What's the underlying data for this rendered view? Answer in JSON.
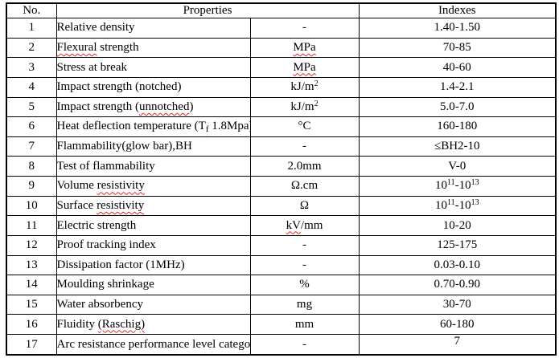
{
  "table": {
    "headers": {
      "no": "No.",
      "properties": "Properties",
      "indexes": "Indexes"
    },
    "squiggle_color": "#e02b20",
    "border_color": "#000000",
    "rows": [
      {
        "no": "1",
        "property": [
          {
            "t": "Relative density"
          }
        ],
        "unit": [
          {
            "t": "-"
          }
        ],
        "index": [
          {
            "t": "1.40-1.50"
          }
        ]
      },
      {
        "no": "2",
        "property": [
          {
            "t": "Flexural",
            "sq": true
          },
          {
            "t": " strength"
          }
        ],
        "unit": [
          {
            "t": "MPa",
            "sq": true
          }
        ],
        "index": [
          {
            "t": "70-85"
          }
        ]
      },
      {
        "no": "3",
        "property": [
          {
            "t": "Stress at break"
          }
        ],
        "unit": [
          {
            "t": "MPa",
            "sq": true
          }
        ],
        "index": [
          {
            "t": "40-60"
          }
        ]
      },
      {
        "no": "4",
        "property": [
          {
            "t": "Impact strength (notched)"
          }
        ],
        "unit": [
          {
            "t": "kJ/m"
          },
          {
            "t": "2",
            "v": "sup"
          }
        ],
        "index": [
          {
            "t": "1.4-2.1"
          }
        ]
      },
      {
        "no": "5",
        "property": [
          {
            "t": "Impact strength ("
          },
          {
            "t": "unnotched",
            "sq": true
          },
          {
            "t": ")"
          }
        ],
        "unit": [
          {
            "t": "kJ/m"
          },
          {
            "t": "2",
            "v": "sup"
          }
        ],
        "index": [
          {
            "t": "5.0-7.0"
          }
        ]
      },
      {
        "no": "6",
        "property": [
          {
            "t": "Heat deflection temperature (T"
          },
          {
            "t": "f",
            "v": "sub",
            "sq": true
          },
          {
            "t": " 1.8Mpa)"
          }
        ],
        "unit": [
          {
            "t": "°C"
          }
        ],
        "index": [
          {
            "t": "160-180"
          }
        ]
      },
      {
        "no": "7",
        "property": [
          {
            "t": "Flammability(glow bar),BH"
          }
        ],
        "unit": [
          {
            "t": "-"
          }
        ],
        "index": [
          {
            "t": "≤BH2-10"
          }
        ]
      },
      {
        "no": "8",
        "property": [
          {
            "t": "Test of flammability"
          }
        ],
        "unit": [
          {
            "t": "2.0mm"
          }
        ],
        "index": [
          {
            "t": "V-0"
          }
        ]
      },
      {
        "no": "9",
        "property": [
          {
            "t": "Volume "
          },
          {
            "t": "resistivity",
            "sq": true
          }
        ],
        "unit": [
          {
            "t": "Ω.cm"
          }
        ],
        "index": [
          {
            "t": "10"
          },
          {
            "t": "11",
            "v": "sup"
          },
          {
            "t": "-10"
          },
          {
            "t": "13",
            "v": "sup"
          }
        ]
      },
      {
        "no": "10",
        "property": [
          {
            "t": "Surface "
          },
          {
            "t": "resistivity",
            "sq": true
          }
        ],
        "unit": [
          {
            "t": "Ω"
          }
        ],
        "index": [
          {
            "t": "10"
          },
          {
            "t": "11",
            "v": "sup"
          },
          {
            "t": "-10"
          },
          {
            "t": "13",
            "v": "sup"
          }
        ]
      },
      {
        "no": "11",
        "property": [
          {
            "t": "Electric strength"
          }
        ],
        "unit": [
          {
            "t": "kV",
            "sq": true
          },
          {
            "t": "/mm"
          }
        ],
        "index": [
          {
            "t": "10-20"
          }
        ]
      },
      {
        "no": "12",
        "property": [
          {
            "t": "Proof tracking index"
          }
        ],
        "unit": [
          {
            "t": "-"
          }
        ],
        "index": [
          {
            "t": "125-175"
          }
        ]
      },
      {
        "no": "13",
        "property": [
          {
            "t": "Dissipation factor (1MHz)"
          }
        ],
        "unit": [
          {
            "t": "-"
          }
        ],
        "index": [
          {
            "t": "0.03-0.10"
          }
        ]
      },
      {
        "no": "14",
        "property": [
          {
            "t": "Moulding shrinkage"
          }
        ],
        "unit": [
          {
            "t": "%"
          }
        ],
        "index": [
          {
            "t": "0.70-0.90"
          }
        ]
      },
      {
        "no": "15",
        "property": [
          {
            "t": "Water absorbency"
          }
        ],
        "unit": [
          {
            "t": "mg"
          }
        ],
        "index": [
          {
            "t": "30-70"
          }
        ]
      },
      {
        "no": "16",
        "property": [
          {
            "t": "Fluidity "
          },
          {
            "t": "(Raschig)",
            "sq": true
          }
        ],
        "unit": [
          {
            "t": "mm"
          }
        ],
        "index": [
          {
            "t": "60-180"
          }
        ]
      },
      {
        "no": "17",
        "property": [
          {
            "t": "Arc resistance performance level category"
          }
        ],
        "unit": [
          {
            "t": "-"
          }
        ],
        "index": [
          {
            "t": "7"
          }
        ],
        "index_top": true
      }
    ]
  }
}
